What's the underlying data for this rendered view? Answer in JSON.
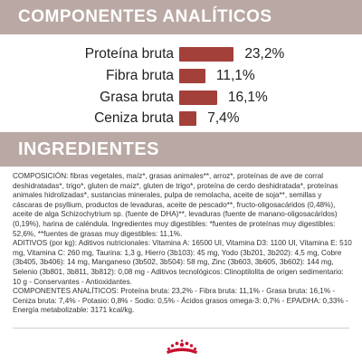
{
  "componentes": {
    "title": "COMPONENTES ANALÍTICOS",
    "items": [
      {
        "label": "Proteína bruta",
        "value_text": "23,2%",
        "percent": 23.2
      },
      {
        "label": "Fibra bruta",
        "value_text": "11,1%",
        "percent": 11.1
      },
      {
        "label": "Grasa bruta",
        "value_text": "16,1%",
        "percent": 16.1
      },
      {
        "label": "Ceniza bruta",
        "value_text": "7,4%",
        "percent": 7.4
      }
    ],
    "bar_color": "#a3403a"
  },
  "ingredientes": {
    "title": "INGREDIENTES",
    "paragraphs": [
      "COMPOSICIÓN: fibras vegetales, maíz*, grasas animales**, arroz*, proteínas de ave de corral deshidratadas*, trigo*, gluten de maíz*, gluten de trigo*, proteína de cerdo deshidratada*, proteínas animales hidrolizadas*, sustancias minerales, pulpa de remolacha, aceite de soja**, semillas y cáscaras de psyllium, productos de levaduras, aceite de pescado**, fructo-oligosacáridos (0,48%), aceite de alga Schizochytrium sp. (fuente de DHA)**, levaduras (fuente de manano-oligosacáridos) (0,19%), harina de caléndula. Ingredientes muy digestibles: *fuentes de proteínas muy digestibles: 52,6%, **fuentes de grasas muy digestibles: 11,1%.",
      "ADITIVOS (por kg): Aditivos nutricionales: Vitamina A: 16500 UI, Vitamina D3: 1100 UI, Vitamina E: 510 mg, Vitamina C: 260 mg, Taurina: 1,3 g, Hierro (3b103): 45 mg, Yodo (3b201, 3b202): 4,5 mg, Cobre (3b405, 3b406): 14 mg, Manganeso (3b502, 3b504): 58 mg, Zinc (3b603, 3b605, 3b602): 144 mg, Selenio (3b801, 3b811, 3b812): 0,08 mg - Aditivos tecnológicos: Clinoptilolita de origen sedimentario: 10 g - Conservantes - Antioxidantes.",
      "COMPONENTES ANALÍTICOS: Proteína bruta: 23,2% - Fibra bruta: 11,1% - Grasa bruta: 16,1% - Ceniza bruta: 7,4% - Potasio: 0,8% - Sodio: 0,5% - Ácidos grasos omega-3: 0,7% - EPA/DHA: 0,33% - Energía metabolizable: 3171 kcal/kg."
    ]
  },
  "colors": {
    "band": "#b9a8a3",
    "bar": "#a3403a",
    "brand_red": "#c8102e"
  },
  "logo": {
    "icon": "royal-canin-crown-logo"
  }
}
